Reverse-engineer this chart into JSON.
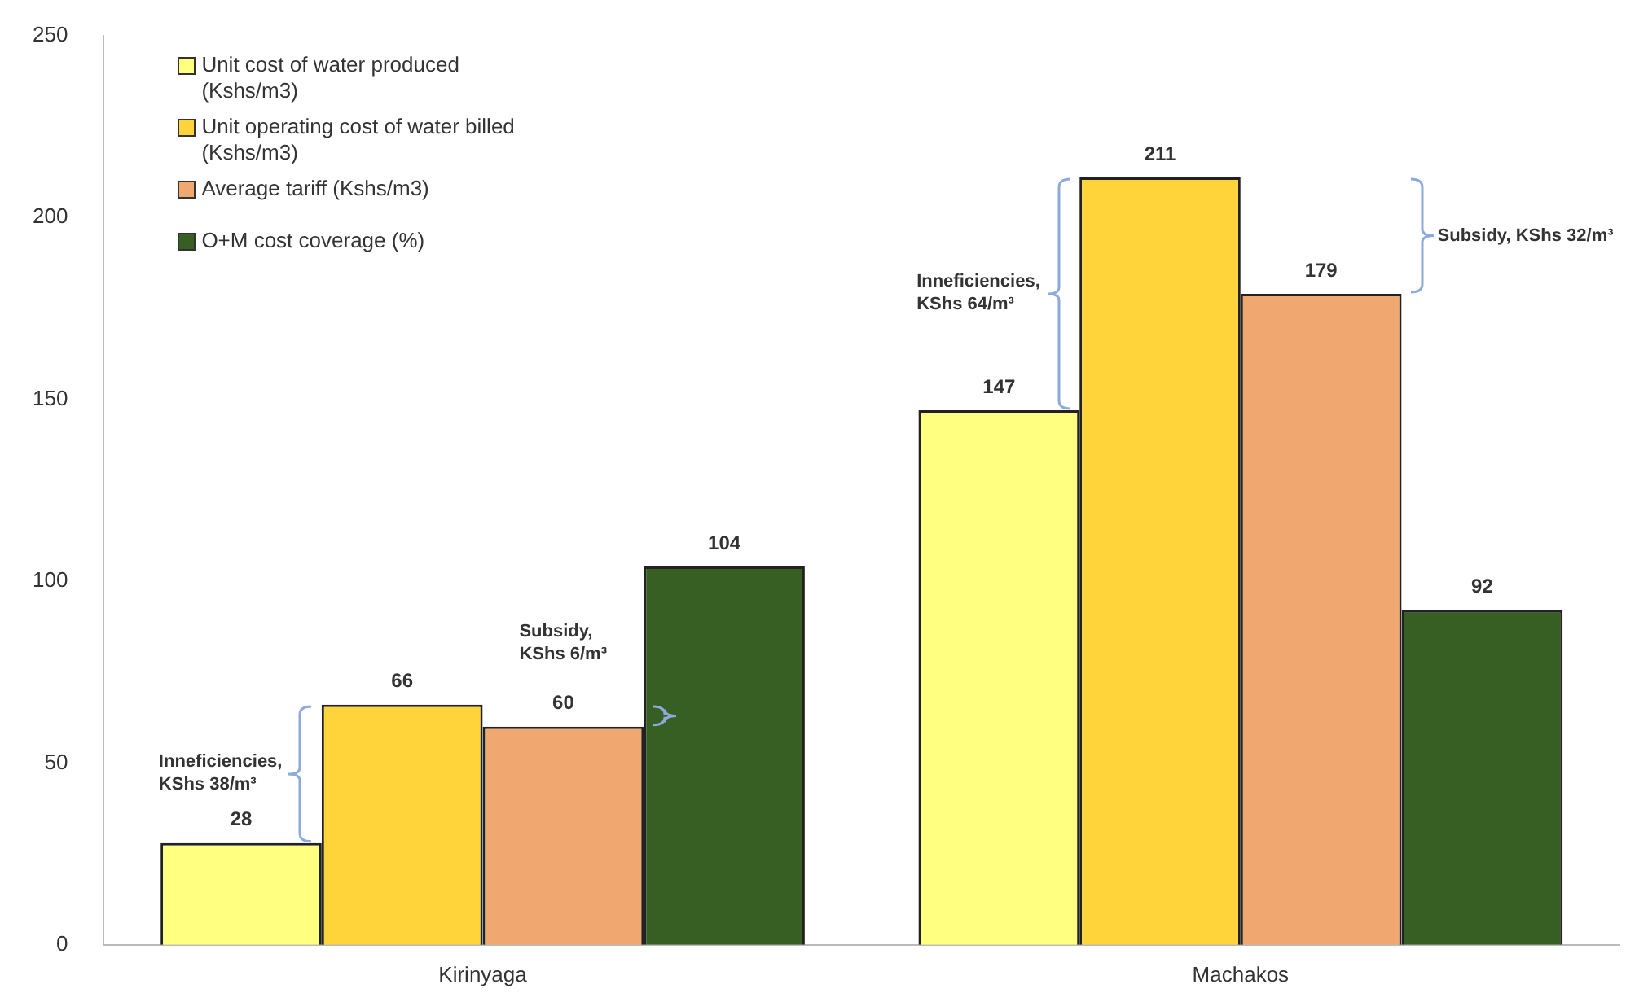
{
  "chart_data": {
    "type": "bar",
    "categories": [
      "Kirinyaga",
      "Machakos"
    ],
    "series": [
      {
        "name": "Unit cost of water produced (Kshs/m3)",
        "color": "#ffff80",
        "values": [
          28,
          147
        ]
      },
      {
        "name": "Unit operating cost of water billed (Kshs/m3)",
        "color": "#ffd43b",
        "values": [
          66,
          211
        ]
      },
      {
        "name": "Average tariff (Kshs/m3)",
        "color": "#f0a870",
        "values": [
          60,
          179
        ]
      },
      {
        "name": "O+M cost coverage (%)",
        "color": "#375e23",
        "values": [
          104,
          92
        ]
      }
    ],
    "ylim": [
      0,
      250
    ],
    "yticks": [
      0,
      50,
      100,
      150,
      200,
      250
    ],
    "grid": false,
    "legend": "top left",
    "data_labels": true,
    "annotations": [
      "Inneficiencies, KShs 38/m³",
      "Subsidy, KShs 6/m³",
      "Inneficiencies, KShs 64/m³",
      "Subsidy, KShs 32/m³"
    ]
  }
}
